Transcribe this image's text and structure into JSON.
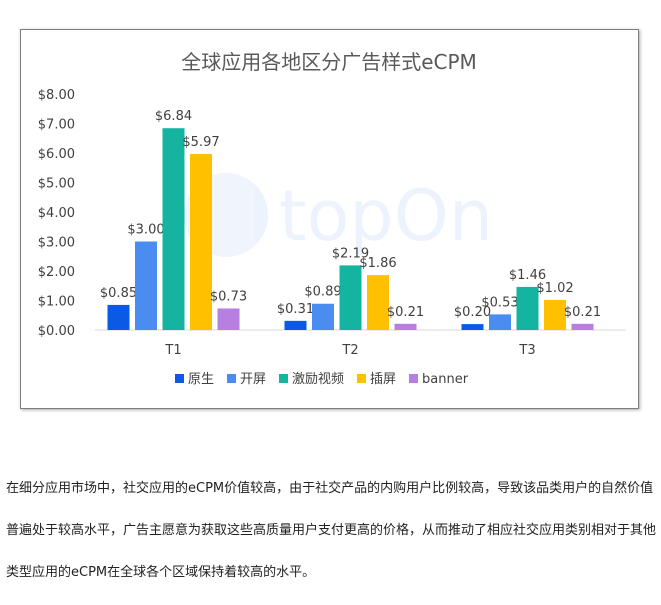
{
  "chart_data": {
    "type": "bar",
    "title": "全球应用各地区分广告样式eCPM",
    "categories": [
      "T1",
      "T2",
      "T3"
    ],
    "series": [
      {
        "name": "原生",
        "color": "#0a5ae6",
        "values": [
          0.85,
          0.31,
          0.2
        ],
        "labels": [
          "$0.85",
          "$0.31",
          "$0.20"
        ]
      },
      {
        "name": "开屏",
        "color": "#4a8cf0",
        "values": [
          3.0,
          0.89,
          0.53
        ],
        "labels": [
          "$3.00",
          "$0.89",
          "$0.53"
        ]
      },
      {
        "name": "激励视频",
        "color": "#14b4a0",
        "values": [
          6.84,
          2.19,
          1.46
        ],
        "labels": [
          "$6.84",
          "$2.19",
          "$1.46"
        ]
      },
      {
        "name": "插屏",
        "color": "#ffc000",
        "values": [
          5.97,
          1.86,
          1.02
        ],
        "labels": [
          "$5.97",
          "$1.86",
          "$1.02"
        ]
      },
      {
        "name": "banner",
        "color": "#b77fe0",
        "values": [
          0.73,
          0.21,
          0.21
        ],
        "labels": [
          "$0.73",
          "$0.21",
          "$0.21"
        ]
      }
    ],
    "ylim": [
      0,
      8
    ],
    "yticks": [
      0,
      1,
      2,
      3,
      4,
      5,
      6,
      7,
      8
    ],
    "ytick_labels": [
      "$0.00",
      "$1.00",
      "$2.00",
      "$3.00",
      "$4.00",
      "$5.00",
      "$6.00",
      "$7.00",
      "$8.00"
    ],
    "legend_position": "bottom",
    "grid": false,
    "watermark": "topOn"
  },
  "paragraph": "在细分应用市场中，社交应用的eCPM价值较高，由于社交产品的内购用户比例较高，导致该品类用户的自然价值普遍处于较高水平，广告主愿意为获取这些高质量用户支付更高的价格，从而推动了相应社交应用类别相对于其他类型应用的eCPM在全球各个区域保持着较高的水平。"
}
